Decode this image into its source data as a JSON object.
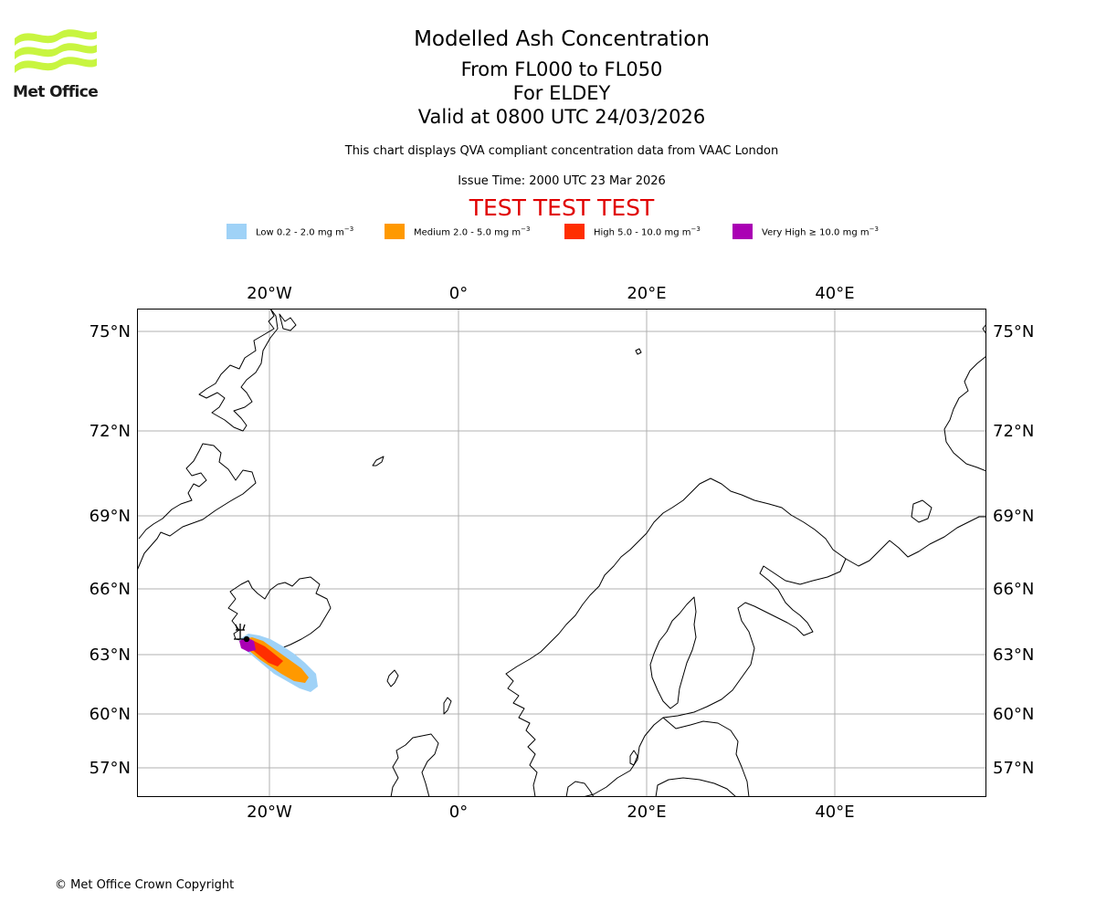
{
  "logo": {
    "text": "Met Office",
    "icon": "met-office-wave-logo",
    "color": "#c8f540"
  },
  "title": {
    "line1": "Modelled Ash Concentration",
    "line2": "From FL000 to FL050",
    "line3": "For ELDEY",
    "line4": "Valid at 0800 UTC 24/03/2026"
  },
  "subtitle": "This chart displays QVA compliant concentration data from VAAC London",
  "issue_time": "Issue Time: 2000 UTC 23 Mar 2026",
  "test_banner": "TEST TEST TEST",
  "legend": [
    {
      "prefix": "Low 0.2 - 2.0 mg m",
      "sup": "−3",
      "color": "#9fd2f7"
    },
    {
      "prefix": "Medium 2.0 - 5.0 mg m",
      "sup": "−3",
      "color": "#ff9900"
    },
    {
      "prefix": "High 5.0 - 10.0 mg m",
      "sup": "−3",
      "color": "#ff2e00"
    },
    {
      "prefix": "Very High ≥ 10.0 mg m",
      "sup": "−3",
      "color": "#aa00b4"
    }
  ],
  "map": {
    "lon_labels": [
      "20°W",
      "0°",
      "20°E",
      "40°E"
    ],
    "lat_labels": [
      "75°N",
      "72°N",
      "69°N",
      "66°N",
      "63°N",
      "60°N",
      "57°N"
    ],
    "gridline_color": "#b0b0b0",
    "coast_color": "#000000"
  },
  "copyright": "© Met Office Crown Copyright"
}
